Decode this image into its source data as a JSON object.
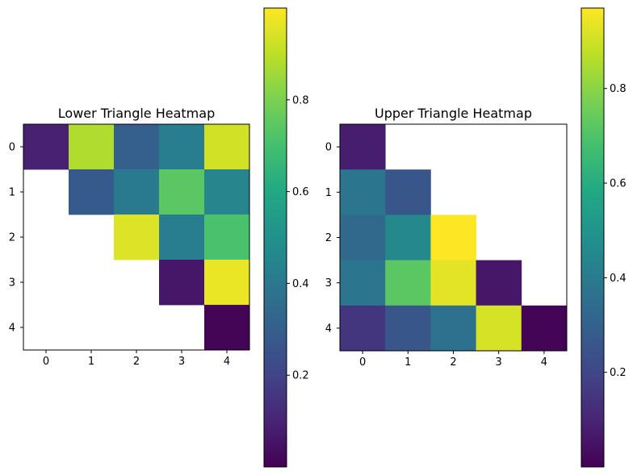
{
  "colormap": "viridis",
  "chart_data": [
    {
      "type": "heatmap",
      "title": "Lower Triangle Heatmap",
      "x_ticks": [
        "0",
        "1",
        "2",
        "3",
        "4"
      ],
      "y_ticks": [
        "0",
        "1",
        "2",
        "3",
        "4"
      ],
      "matrix": [
        [
          0.09,
          0.88,
          0.3,
          0.42,
          0.93
        ],
        [
          null,
          0.28,
          0.41,
          0.74,
          0.45
        ],
        [
          null,
          null,
          0.95,
          0.42,
          0.71
        ],
        [
          null,
          null,
          null,
          0.06,
          0.97
        ],
        [
          null,
          null,
          null,
          null,
          0.01
        ]
      ],
      "colorbar": {
        "range": [
          0.0,
          1.0
        ],
        "ticks": [
          0.2,
          0.4,
          0.6,
          0.8
        ],
        "tick_labels": [
          "0.2",
          "0.4",
          "0.6",
          "0.8"
        ]
      }
    },
    {
      "type": "heatmap",
      "title": "Upper Triangle Heatmap",
      "x_ticks": [
        "0",
        "1",
        "2",
        "3",
        "4"
      ],
      "y_ticks": [
        "0",
        "1",
        "2",
        "3",
        "4"
      ],
      "matrix": [
        [
          0.08,
          null,
          null,
          null,
          null
        ],
        [
          0.38,
          0.26,
          null,
          null,
          null
        ],
        [
          0.33,
          0.45,
          0.97,
          null,
          null
        ],
        [
          0.38,
          0.72,
          0.93,
          0.06,
          null
        ],
        [
          0.15,
          0.26,
          0.36,
          0.91,
          0.01
        ]
      ],
      "colorbar": {
        "range": [
          0.0,
          0.97
        ],
        "ticks": [
          0.2,
          0.4,
          0.6,
          0.8
        ],
        "tick_labels": [
          "0.2",
          "0.4",
          "0.6",
          "0.8"
        ]
      }
    }
  ]
}
